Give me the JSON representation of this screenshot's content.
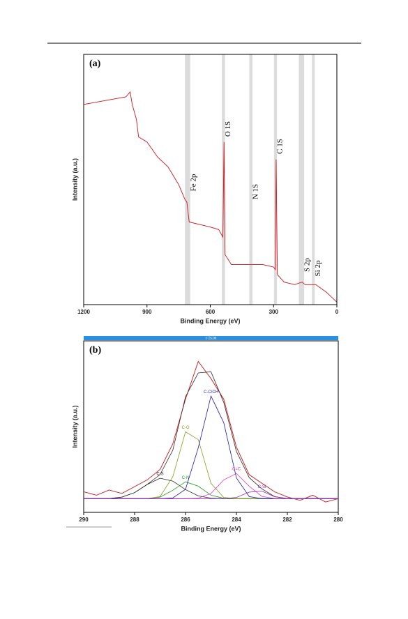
{
  "chart_data": [
    {
      "type": "line",
      "title": "(a)",
      "xlabel": "Binding Energy (eV)",
      "ylabel": "Intensity (a.u.)",
      "xlim": [
        1200,
        0
      ],
      "ylim": [
        0,
        100
      ],
      "xticks": [
        1200,
        900,
        600,
        300,
        0
      ],
      "x": [
        1200,
        1000,
        980,
        970,
        950,
        940,
        900,
        850,
        800,
        750,
        720,
        711,
        700,
        650,
        600,
        560,
        540,
        535,
        530,
        500,
        450,
        400,
        350,
        300,
        292,
        288,
        282,
        250,
        200,
        165,
        150,
        100,
        50,
        0
      ],
      "series": [
        {
          "color": "#c8161d",
          "values": [
            80,
            83,
            85,
            80,
            74,
            67,
            65,
            59,
            55,
            48,
            42,
            41,
            33,
            32,
            31,
            30,
            27,
            65,
            20,
            16,
            16,
            16,
            16,
            15,
            14,
            58,
            12,
            9,
            8,
            9,
            8,
            8,
            5,
            1
          ]
        }
      ],
      "annotations": [
        {
          "text": "Fe 2p",
          "band": [
            695,
            720
          ]
        },
        {
          "text": "O 1S",
          "band": [
            530,
            545
          ]
        },
        {
          "text": "N 1S",
          "band": [
            400,
            415
          ]
        },
        {
          "text": "C 1S",
          "band": [
            284,
            298
          ]
        },
        {
          "text": "S 2p",
          "band": [
            155,
            180
          ]
        },
        {
          "text": "Si 2p",
          "band": [
            105,
            118
          ]
        }
      ]
    },
    {
      "type": "line",
      "title": "(b)",
      "header": "c 1s.txt",
      "xlabel": "Binding Energy (eV)",
      "ylabel": "Intensity (a.u.)",
      "xlim": [
        290,
        280
      ],
      "ylim": [
        0,
        100
      ],
      "xticks": [
        290,
        288,
        286,
        284,
        282,
        280
      ],
      "x": [
        290,
        289.5,
        289,
        288.5,
        288,
        287.5,
        287,
        286.5,
        286,
        285.5,
        285,
        284.5,
        284,
        283.5,
        283,
        282.5,
        282,
        281.5,
        281,
        280.5,
        280
      ],
      "series": [
        {
          "color": "#c8161d",
          "values": [
            12,
            10,
            13,
            11,
            15,
            19,
            25,
            40,
            66,
            88,
            78,
            66,
            38,
            22,
            17,
            12,
            9,
            7,
            10,
            6,
            8
          ]
        },
        {
          "color": "#3a2a2a",
          "values": [
            8,
            8,
            8.1,
            8.9,
            11.5,
            16.4,
            22,
            36.3,
            67.5,
            81.3,
            82,
            64.1,
            35.5,
            20.3,
            13.7,
            9.2,
            8.1,
            8,
            8,
            8,
            8
          ]
        },
        {
          "name": "C-S",
          "color": "#222222",
          "values": [
            8,
            8,
            8.1,
            8.9,
            11.5,
            16.3,
            19.9,
            18.2,
            13.3,
            9.6,
            8.3,
            8,
            8,
            8,
            8,
            8,
            8,
            8,
            8,
            8,
            8
          ]
        },
        {
          "name": "C-N",
          "color": "#1a9a1a",
          "values": [
            8,
            8,
            8,
            8,
            8,
            8.1,
            8.9,
            12.9,
            17.8,
            15.3,
            10,
            8.2,
            8,
            8,
            8,
            8,
            8,
            8,
            8,
            8,
            8
          ]
        },
        {
          "name": "C-O",
          "color": "#8a9a1a",
          "values": [
            8,
            8,
            8,
            8,
            8,
            8,
            9.2,
            20.8,
            47,
            42.4,
            16.9,
            8.7,
            8,
            8,
            8,
            8,
            8,
            8,
            8,
            8,
            8
          ]
        },
        {
          "name": "C-C/CH",
          "color": "#1a1ab0",
          "values": [
            8,
            8,
            8,
            8,
            8,
            8,
            8,
            8.4,
            13.4,
            37.7,
            67.8,
            52.3,
            20.1,
            9.2,
            8,
            8,
            8,
            8,
            8,
            8,
            8
          ]
        },
        {
          "name": "C=C",
          "color": "#e040c0",
          "values": [
            8,
            8,
            8,
            8,
            8,
            8,
            8,
            8,
            8,
            8.3,
            11,
            18.9,
            22.7,
            15.3,
            9.3,
            8.1,
            8,
            8,
            8,
            8,
            8
          ]
        },
        {
          "name": "C-Si",
          "color": "#8a2ab0",
          "values": [
            8,
            8,
            8,
            8,
            8,
            8,
            8,
            8,
            8,
            8,
            8,
            8,
            8.7,
            11.8,
            12.4,
            9.1,
            8.1,
            8,
            8,
            8,
            8
          ]
        }
      ]
    }
  ]
}
